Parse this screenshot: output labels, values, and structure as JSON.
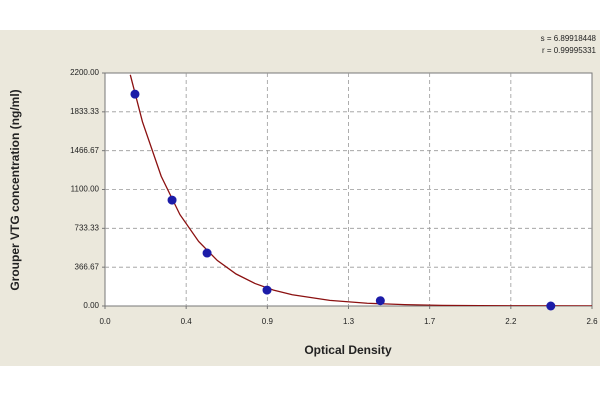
{
  "chart_data": {
    "type": "scatter",
    "annotations": [
      "s = 6.89918448",
      "r = 0.99995331"
    ],
    "x_label": "Optical Density",
    "y_label": "Grouper VTG concentration (ng/ml)",
    "xlim": [
      0,
      2.6
    ],
    "xticks": [
      {
        "value": 0,
        "label": "0.0"
      },
      {
        "value": 0.4333,
        "label": "0.4"
      },
      {
        "value": 0.8667,
        "label": "0.9"
      },
      {
        "value": 1.3,
        "label": "1.3"
      },
      {
        "value": 1.7333,
        "label": "1.7"
      },
      {
        "value": 2.1667,
        "label": "2.2"
      },
      {
        "value": 2.6,
        "label": "2.6"
      }
    ],
    "ylim": [
      0,
      2200
    ],
    "yticks": [
      {
        "value": 0,
        "label": "0.00"
      },
      366.67,
      733.33,
      {
        "value": 1100,
        "label": "1100.00"
      },
      1466.67,
      1833.33,
      {
        "value": 2200,
        "label": "2200.00"
      }
    ],
    "grid": true,
    "series": [
      {
        "type": "line",
        "color": "#8b1010",
        "x": [
          0.135,
          0.2,
          0.3,
          0.4,
          0.5,
          0.6,
          0.7,
          0.8,
          0.9,
          1.0,
          1.2,
          1.4,
          1.6,
          1.8,
          2.0,
          2.2,
          2.6
        ],
        "values": [
          2183,
          1739,
          1225,
          863,
          609,
          429,
          302,
          213,
          150,
          106,
          53,
          26,
          13,
          6,
          3,
          2,
          1
        ]
      },
      {
        "type": "scatter",
        "color": "#1c1ca8",
        "x": [
          0.16,
          0.358,
          0.545,
          0.865,
          1.47,
          2.38
        ],
        "values": [
          2000,
          1000,
          500,
          150,
          50,
          0
        ]
      }
    ]
  }
}
